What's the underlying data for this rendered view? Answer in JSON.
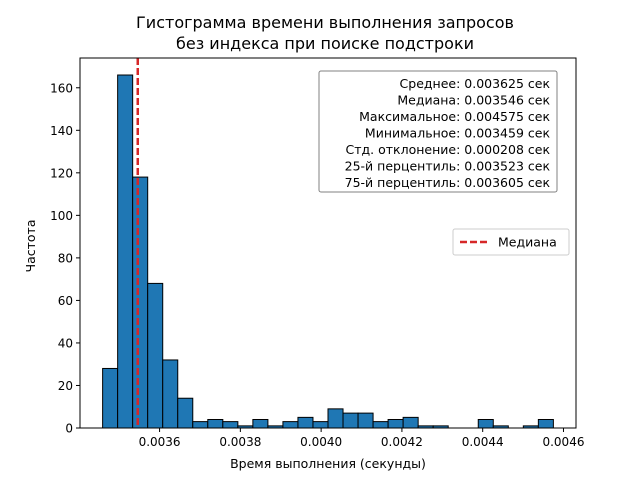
{
  "chart_data": {
    "type": "bar",
    "title": [
      "Гистограмма времени выполнения запросов",
      "без индекса при поиске подстроки"
    ],
    "xlabel": "Время выполнения (секунды)",
    "ylabel": "Частота",
    "xlim": [
      0.003403,
      0.004631
    ],
    "ylim": [
      0,
      174
    ],
    "x_ticks": [
      0.0036,
      0.0038,
      0.004,
      0.0042,
      0.0044,
      0.0046
    ],
    "x_tick_labels": [
      "0.0036",
      "0.0038",
      "0.0040",
      "0.0042",
      "0.0044",
      "0.0046"
    ],
    "y_ticks": [
      0,
      20,
      40,
      60,
      80,
      100,
      120,
      140,
      160
    ],
    "y_tick_labels": [
      "0",
      "20",
      "40",
      "60",
      "80",
      "100",
      "120",
      "140",
      "160"
    ],
    "bins": {
      "start": 0.003459,
      "end": 0.004575,
      "counts": [
        28,
        166,
        118,
        68,
        32,
        14,
        3,
        4,
        3,
        1,
        4,
        1,
        3,
        5,
        3,
        9,
        7,
        7,
        3,
        4,
        5,
        1,
        1,
        0,
        0,
        4,
        1,
        0,
        1,
        4
      ]
    },
    "bar_color": "#1f77b4",
    "bar_edge_color": "#000000",
    "median_line": {
      "x": 0.003546,
      "color": "#d62728",
      "style": "dashed"
    },
    "legend": {
      "position": "center-right",
      "entries": [
        "Медиана"
      ]
    },
    "stats_box": {
      "position": "top-right",
      "lines": [
        "Среднее: 0.003625 сек",
        "Медиана: 0.003546 сек",
        "Максимальное: 0.004575 сек",
        "Минимальное: 0.003459 сек",
        "Стд. отклонение: 0.000208 сек",
        "25-й перцентиль: 0.003523 сек",
        "75-й перцентиль: 0.003605 сек"
      ]
    }
  }
}
